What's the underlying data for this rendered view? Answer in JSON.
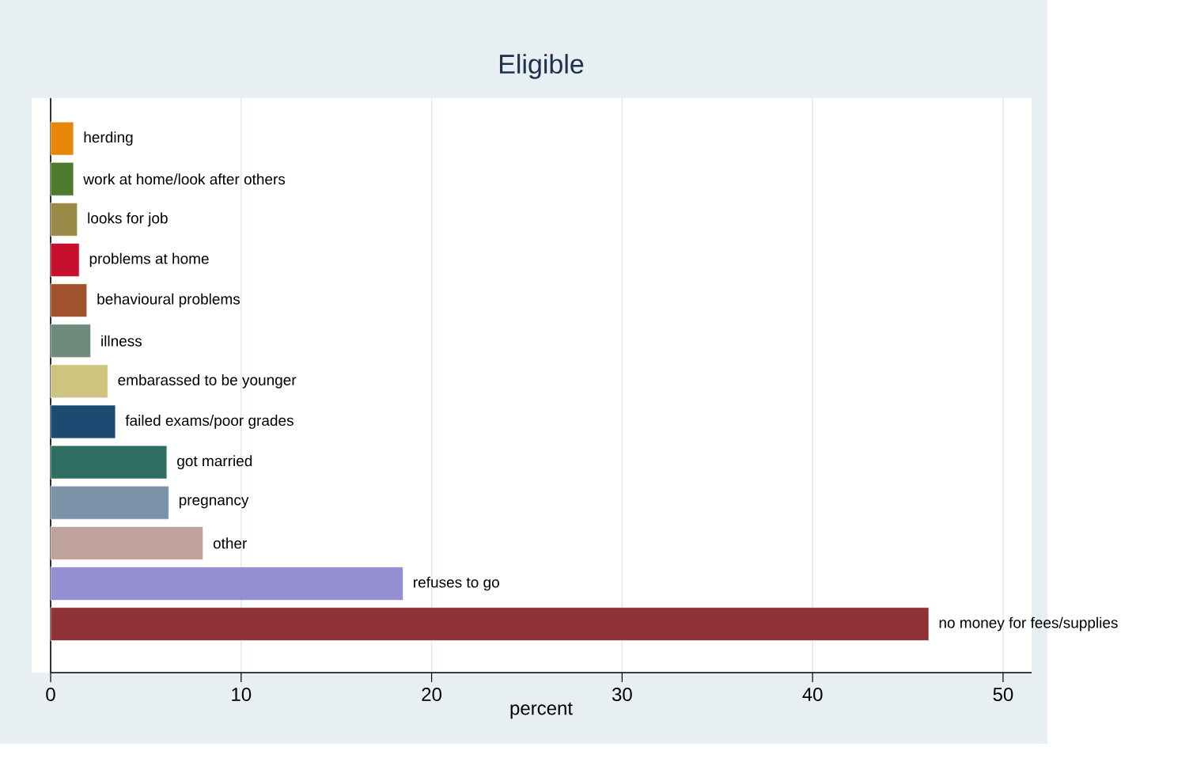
{
  "chart_data": {
    "type": "bar",
    "orientation": "horizontal",
    "title": "Eligible",
    "xlabel": "percent",
    "categories": [
      "herding",
      "work at home/look after others",
      "looks for job",
      "problems at home",
      "behavioural problems",
      "illness",
      "embarassed to be younger",
      "failed exams/poor grades",
      "got married",
      "pregnancy",
      "other",
      "refuses to go",
      "no money for fees/supplies"
    ],
    "values": [
      1.2,
      1.2,
      1.4,
      1.5,
      1.9,
      2.1,
      3.0,
      3.4,
      6.1,
      6.2,
      8.0,
      18.5,
      46.1
    ],
    "colors": [
      "#e8860a",
      "#4e7a2e",
      "#9a8a48",
      "#c8102e",
      "#a0522d",
      "#6e8b7d",
      "#cdc47f",
      "#1b4a73",
      "#2e6e62",
      "#7a93a8",
      "#bfa39b",
      "#938fd1",
      "#8f3339"
    ],
    "xlim": [
      0,
      51.5
    ],
    "xticks": [
      0,
      10,
      20,
      30,
      40,
      50
    ],
    "grid": "x"
  }
}
